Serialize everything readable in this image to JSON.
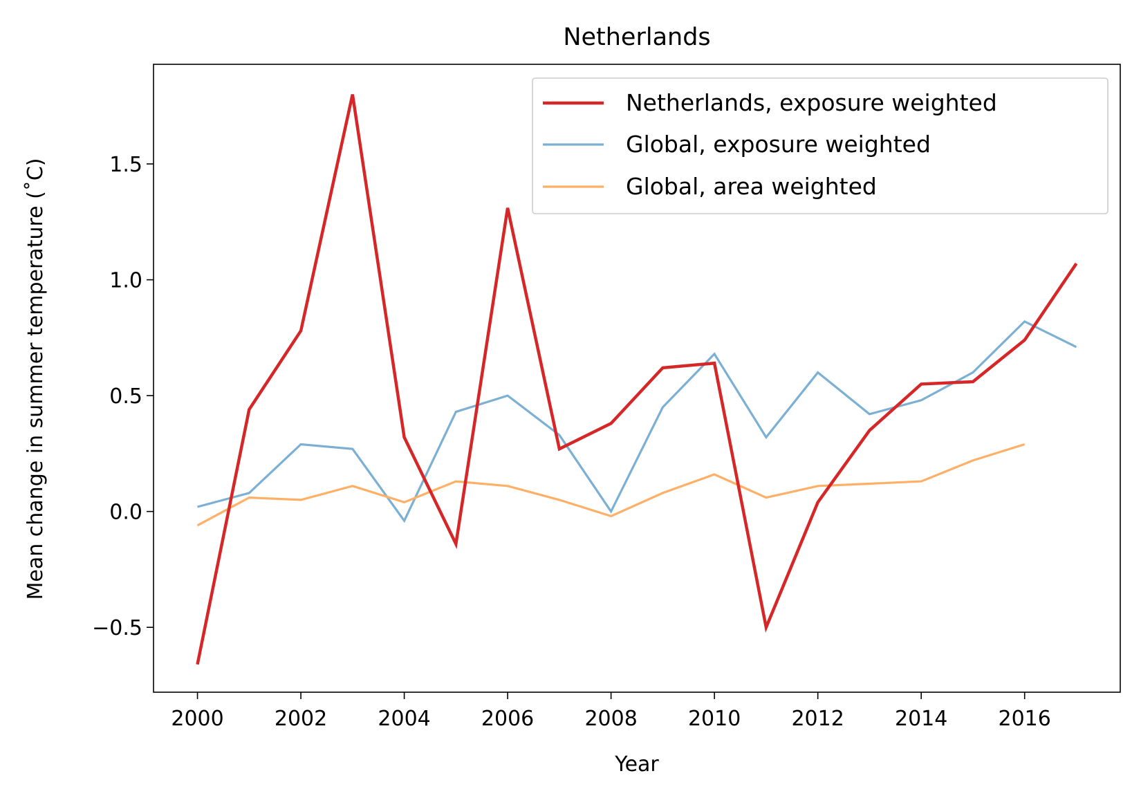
{
  "chart_data": {
    "type": "line",
    "title": "Netherlands",
    "xlabel": "Year",
    "ylabel": "Mean change in summer temperature (˚C)",
    "xlim": [
      1999.15,
      2017.85
    ],
    "ylim": [
      -0.78,
      1.93
    ],
    "xticks": [
      2000,
      2002,
      2004,
      2006,
      2008,
      2010,
      2012,
      2014,
      2016
    ],
    "xtick_labels": [
      "2000",
      "2002",
      "2004",
      "2006",
      "2008",
      "2010",
      "2012",
      "2014",
      "2016"
    ],
    "yticks": [
      -0.5,
      0.0,
      0.5,
      1.0,
      1.5
    ],
    "ytick_labels": [
      "−0.5",
      "0.0",
      "0.5",
      "1.0",
      "1.5"
    ],
    "grid": false,
    "legend_position": "top-right",
    "series": [
      {
        "name": "Netherlands, exposure weighted",
        "color": "#d62728",
        "x": [
          2000,
          2001,
          2002,
          2003,
          2004,
          2005,
          2006,
          2007,
          2008,
          2009,
          2010,
          2011,
          2012,
          2013,
          2014,
          2015,
          2016,
          2017
        ],
        "y": [
          -0.66,
          0.44,
          0.78,
          1.8,
          0.32,
          -0.14,
          1.31,
          0.27,
          0.38,
          0.62,
          0.64,
          -0.5,
          0.04,
          0.35,
          0.55,
          0.56,
          0.74,
          1.07
        ]
      },
      {
        "name": "Global, exposure weighted",
        "color": "#7bafd4",
        "x": [
          2000,
          2001,
          2002,
          2003,
          2004,
          2005,
          2006,
          2007,
          2008,
          2009,
          2010,
          2011,
          2012,
          2013,
          2014,
          2015,
          2016,
          2017
        ],
        "y": [
          0.02,
          0.08,
          0.29,
          0.27,
          -0.04,
          0.43,
          0.5,
          0.33,
          0.0,
          0.45,
          0.68,
          0.32,
          0.6,
          0.42,
          0.48,
          0.6,
          0.82,
          0.71
        ]
      },
      {
        "name": "Global, area weighted",
        "color": "#ffb066",
        "x": [
          2000,
          2001,
          2002,
          2003,
          2004,
          2005,
          2006,
          2007,
          2008,
          2009,
          2010,
          2011,
          2012,
          2013,
          2014,
          2015,
          2016
        ],
        "y": [
          -0.06,
          0.06,
          0.05,
          0.11,
          0.04,
          0.13,
          0.11,
          0.05,
          -0.02,
          0.08,
          0.16,
          0.06,
          0.11,
          0.12,
          0.13,
          0.22,
          0.29
        ]
      }
    ]
  }
}
